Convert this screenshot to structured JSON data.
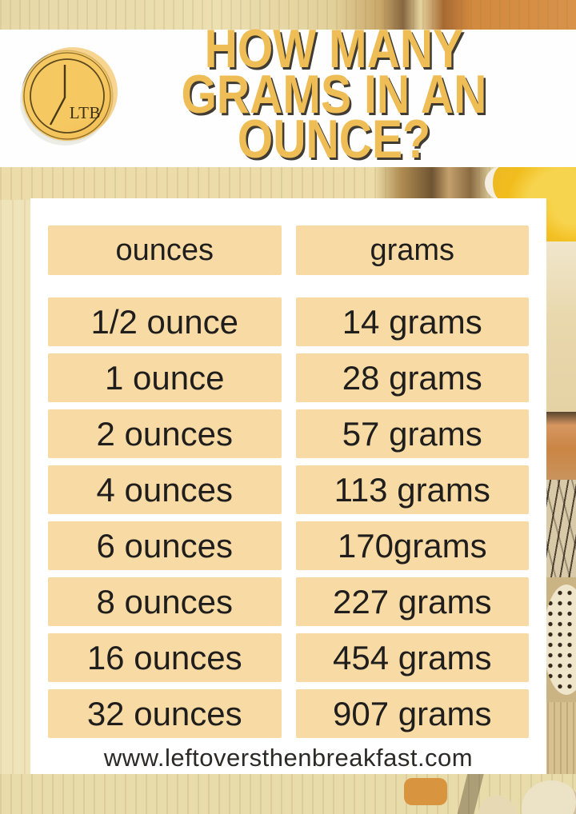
{
  "header": {
    "logo_text": "LTB",
    "title_lines": [
      "HOW MANY",
      "GRAMS IN AN",
      "OUNCE?"
    ]
  },
  "table": {
    "columns": [
      "ounces",
      "grams"
    ],
    "rows": [
      [
        "1/2 ounce",
        "14 grams"
      ],
      [
        "1 ounce",
        "28 grams"
      ],
      [
        "2 ounces",
        "57 grams"
      ],
      [
        "4 ounces",
        "113 grams"
      ],
      [
        "6 ounces",
        "170grams"
      ],
      [
        "8 ounces",
        "227 grams"
      ],
      [
        "16 ounces",
        "454 grams"
      ],
      [
        "32 ounces",
        "907 grams"
      ]
    ]
  },
  "footer": {
    "website": "www.leftoversthenbreakfast.com"
  },
  "colors": {
    "title_yellow": "#EFBD55",
    "title_shadow": "#413C33",
    "cell_tan": "#F8DBA4",
    "coin_yellow": "#F3BF55",
    "text_dark": "#1F1E1C",
    "card_white": "#FFFFFF",
    "wood_tan": "#EFE3B9",
    "egg_yolk": "#F3C125"
  }
}
